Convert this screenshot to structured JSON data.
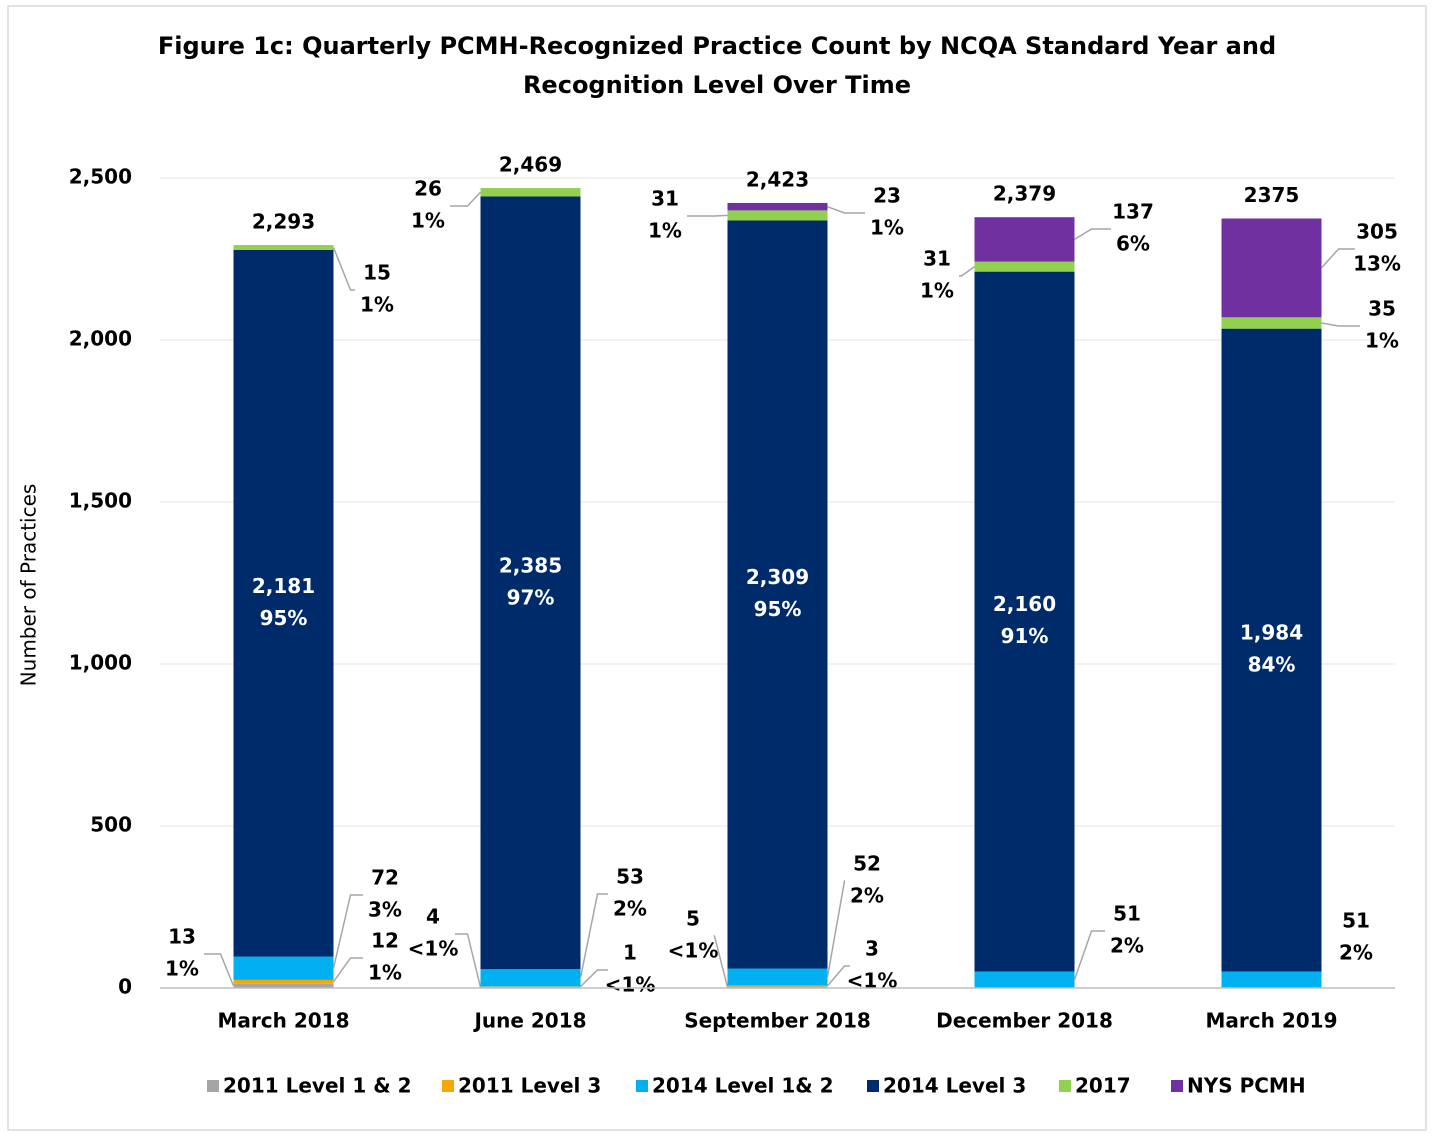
{
  "chart_data": {
    "type": "stacked_bar",
    "title": [
      "Figure 1c: Quarterly PCMH-Recognized Practice Count by NCQA Standard Year and",
      "Recognition Level Over Time"
    ],
    "y_label": "Number of Practices",
    "categories": [
      "March 2018",
      "June 2018",
      "September 2018",
      "December 2018",
      "March 2019"
    ],
    "series": [
      {
        "name": "2011 Level 1 & 2",
        "color": "#a5a5a5",
        "values": [
          13,
          4,
          5,
          null,
          null
        ],
        "value_labels": [
          "13",
          "4",
          "5",
          null,
          null
        ],
        "percent_labels": [
          "1%",
          "<1%",
          "<1%",
          null,
          null
        ]
      },
      {
        "name": "2011 Level 3",
        "color": "#f5a800",
        "values": [
          12,
          1,
          3,
          null,
          null
        ],
        "value_labels": [
          "12",
          "1",
          "3",
          null,
          null
        ],
        "percent_labels": [
          "1%",
          "<1%",
          "<1%",
          null,
          null
        ]
      },
      {
        "name": "2014 Level 1& 2",
        "color": "#00b0f0",
        "values": [
          72,
          53,
          52,
          51,
          51
        ],
        "value_labels": [
          "72",
          "53",
          "52",
          "51",
          "51"
        ],
        "percent_labels": [
          "3%",
          "2%",
          "2%",
          "2%",
          "2%"
        ]
      },
      {
        "name": "2014 Level 3",
        "color": "#002b6b",
        "values": [
          2181,
          2385,
          2309,
          2160,
          1984
        ],
        "value_labels": [
          "2,181",
          "2,385",
          "2,309",
          "2,160",
          "1,984"
        ],
        "percent_labels": [
          "95%",
          "97%",
          "95%",
          "91%",
          "84%"
        ]
      },
      {
        "name": "2017",
        "color": "#92d050",
        "values": [
          15,
          26,
          31,
          31,
          35
        ],
        "value_labels": [
          "15",
          "26",
          "31",
          "31",
          "35"
        ],
        "percent_labels": [
          "1%",
          "1%",
          "1%",
          "1%",
          "1%"
        ]
      },
      {
        "name": "NYS PCMH",
        "color": "#7030a0",
        "values": [
          null,
          null,
          23,
          137,
          305
        ],
        "value_labels": [
          null,
          null,
          "23",
          "137",
          "305"
        ],
        "percent_labels": [
          null,
          null,
          "1%",
          "6%",
          "13%"
        ]
      }
    ],
    "totals": [
      2293,
      2469,
      2423,
      2379,
      2375
    ],
    "total_labels": [
      "2,293",
      "2,469",
      "2,423",
      "2,379",
      "2375"
    ],
    "ylim": [
      0,
      2500
    ],
    "yticks": [
      {
        "value": 0,
        "label": "0"
      },
      {
        "value": 500,
        "label": "500"
      },
      {
        "value": 1000,
        "label": "1,000"
      },
      {
        "value": 1500,
        "label": "1,500"
      },
      {
        "value": 2000,
        "label": "2,000"
      },
      {
        "value": 2500,
        "label": "2,500"
      }
    ],
    "grid": true,
    "legend": "bottom"
  }
}
